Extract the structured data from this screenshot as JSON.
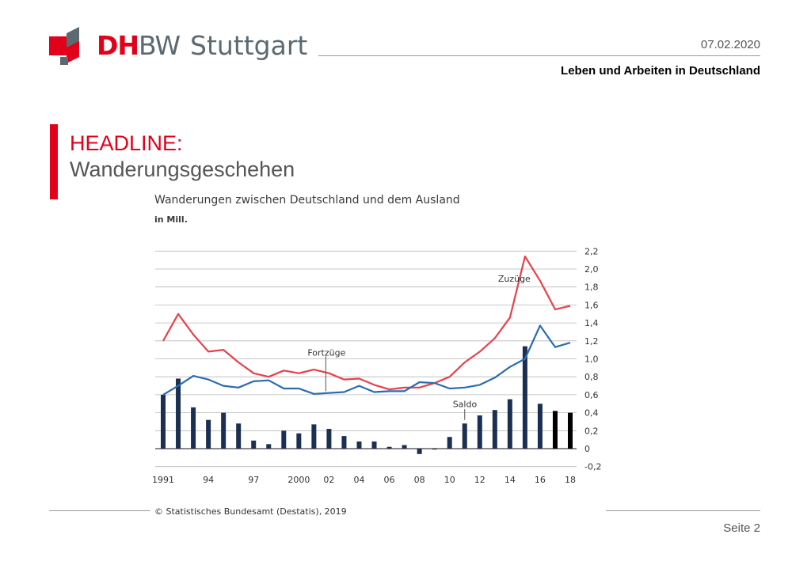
{
  "header": {
    "logo_dh": "DH",
    "logo_bw": "BW",
    "logo_city": "Stuttgart",
    "date": "07.02.2020",
    "course": "Leben und Arbeiten in Deutschland"
  },
  "slide": {
    "headline": "HEADLINE:",
    "subheadline": "Wanderungsgeschehen",
    "chart_title": "Wanderungen zwischen Deutschland und dem Ausland",
    "chart_unit": "in Mill.",
    "source": "© Statistisches Bundesamt (Destatis), 2019",
    "page": "Seite 2"
  },
  "colors": {
    "brand_red": "#e2001a",
    "brand_grey": "#5c6971",
    "zuzuege": "#e8414b",
    "fortzuege": "#2b6cb0",
    "saldo": "#1b2f52",
    "saldo_recent": "#000000"
  },
  "chart_data": {
    "type": "line",
    "x": [
      1991,
      1992,
      1993,
      1994,
      1995,
      1996,
      1997,
      1998,
      1999,
      2000,
      2001,
      2002,
      2003,
      2004,
      2005,
      2006,
      2007,
      2008,
      2009,
      2010,
      2011,
      2012,
      2013,
      2014,
      2015,
      2016,
      2017,
      2018
    ],
    "x_tick_labels": [
      "1991",
      "94",
      "97",
      "2000",
      "02",
      "04",
      "06",
      "08",
      "10",
      "12",
      "14",
      "16",
      "18"
    ],
    "x_tick_values": [
      1991,
      1994,
      1997,
      2000,
      2002,
      2004,
      2006,
      2008,
      2010,
      2012,
      2014,
      2016,
      2018
    ],
    "y_tick_labels": [
      "2,2",
      "2,0",
      "1,8",
      "1,6",
      "1,4",
      "1,2",
      "1,0",
      "0,8",
      "0,6",
      "0,4",
      "0,2",
      "0",
      "-0,2"
    ],
    "y_tick_values": [
      2.2,
      2.0,
      1.8,
      1.6,
      1.4,
      1.2,
      1.0,
      0.8,
      0.6,
      0.4,
      0.2,
      0,
      -0.2
    ],
    "ylim": [
      -0.2,
      2.2
    ],
    "grid": true,
    "series": [
      {
        "name": "Zuzüge",
        "type": "line",
        "color": "#e8414b",
        "values": [
          1.2,
          1.5,
          1.27,
          1.08,
          1.1,
          0.96,
          0.84,
          0.8,
          0.87,
          0.84,
          0.88,
          0.84,
          0.77,
          0.78,
          0.71,
          0.66,
          0.68,
          0.68,
          0.73,
          0.8,
          0.96,
          1.08,
          1.23,
          1.46,
          2.14,
          1.87,
          1.55,
          1.59
        ]
      },
      {
        "name": "Fortzüge",
        "type": "line",
        "color": "#2b6cb0",
        "values": [
          0.6,
          0.7,
          0.81,
          0.77,
          0.7,
          0.68,
          0.75,
          0.76,
          0.67,
          0.67,
          0.61,
          0.62,
          0.63,
          0.7,
          0.63,
          0.64,
          0.64,
          0.74,
          0.73,
          0.67,
          0.68,
          0.71,
          0.79,
          0.91,
          1.0,
          1.37,
          1.13,
          1.18
        ]
      },
      {
        "name": "Saldo",
        "type": "bar",
        "color": "#1b2f52",
        "values": [
          0.6,
          0.78,
          0.46,
          0.32,
          0.4,
          0.28,
          0.09,
          0.05,
          0.2,
          0.17,
          0.27,
          0.22,
          0.14,
          0.08,
          0.08,
          0.02,
          0.04,
          -0.06,
          -0.01,
          0.13,
          0.28,
          0.37,
          0.43,
          0.55,
          1.14,
          0.5,
          0.42,
          0.4
        ]
      }
    ],
    "annotations": [
      "Zuzüge",
      "Fortzüge",
      "Saldo"
    ]
  }
}
